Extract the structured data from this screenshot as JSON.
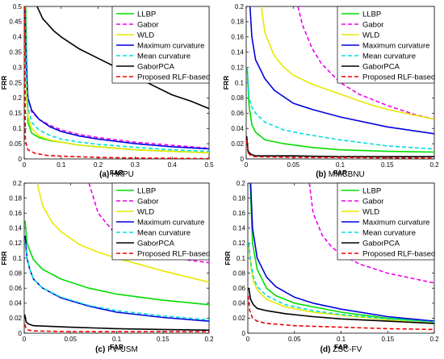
{
  "chart_data": [
    {
      "type": "line",
      "caption_letter": "(a)",
      "caption_text": "HKPU",
      "xlabel": "FAR",
      "ylabel": "FRR",
      "xlim": [
        0,
        0.5
      ],
      "ylim": [
        0,
        0.5
      ],
      "xticks": [
        "0",
        "0.1",
        "0.2",
        "0.3",
        "0.4",
        "0.5"
      ],
      "yticks": [
        "0",
        "0.05",
        "0.1",
        "0.15",
        "0.2",
        "0.25",
        "0.3",
        "0.35",
        "0.4",
        "0.45",
        "0.5"
      ],
      "legend_position": "top-right",
      "series": [
        {
          "name": "LLBP",
          "color": "#00dd00",
          "dash": "solid",
          "x": [
            0.004,
            0.01,
            0.02,
            0.04,
            0.07,
            0.1,
            0.15,
            0.2,
            0.3,
            0.4,
            0.5
          ],
          "y": [
            0.5,
            0.12,
            0.085,
            0.07,
            0.06,
            0.055,
            0.045,
            0.04,
            0.03,
            0.025,
            0.02
          ]
        },
        {
          "name": "Gabor",
          "color": "#ee00ee",
          "dash": "dashed",
          "x": [
            0.002,
            0.005,
            0.01,
            0.02,
            0.04,
            0.07,
            0.1,
            0.15,
            0.2,
            0.3,
            0.4,
            0.5
          ],
          "y": [
            0.5,
            0.35,
            0.2,
            0.155,
            0.13,
            0.11,
            0.095,
            0.08,
            0.07,
            0.055,
            0.045,
            0.035
          ]
        },
        {
          "name": "WLD",
          "color": "#e8e800",
          "dash": "solid",
          "x": [
            0.002,
            0.006,
            0.01,
            0.02,
            0.04,
            0.07,
            0.1,
            0.15,
            0.2,
            0.3,
            0.4,
            0.5
          ],
          "y": [
            0.5,
            0.2,
            0.14,
            0.1,
            0.075,
            0.062,
            0.055,
            0.045,
            0.04,
            0.03,
            0.025,
            0.02
          ]
        },
        {
          "name": "Maximum curvature",
          "color": "#0000dd",
          "dash": "solid",
          "x": [
            0.002,
            0.005,
            0.01,
            0.02,
            0.04,
            0.07,
            0.1,
            0.15,
            0.2,
            0.3,
            0.4,
            0.5
          ],
          "y": [
            0.5,
            0.32,
            0.2,
            0.16,
            0.13,
            0.105,
            0.09,
            0.075,
            0.065,
            0.05,
            0.04,
            0.033
          ]
        },
        {
          "name": "Mean curvature",
          "color": "#00dddd",
          "dash": "dashed",
          "x": [
            0.002,
            0.005,
            0.01,
            0.02,
            0.04,
            0.07,
            0.1,
            0.15,
            0.2,
            0.3,
            0.4,
            0.5
          ],
          "y": [
            0.5,
            0.3,
            0.17,
            0.12,
            0.095,
            0.077,
            0.065,
            0.055,
            0.048,
            0.038,
            0.03,
            0.025
          ]
        },
        {
          "name": "GaborPCA",
          "color": "#000000",
          "dash": "solid",
          "x": [
            0.035,
            0.05,
            0.08,
            0.1,
            0.15,
            0.2,
            0.25,
            0.3,
            0.35,
            0.4,
            0.45,
            0.5
          ],
          "y": [
            0.5,
            0.46,
            0.42,
            0.4,
            0.36,
            0.33,
            0.3,
            0.27,
            0.24,
            0.21,
            0.19,
            0.165
          ]
        },
        {
          "name": "Proposed RLF-based",
          "color": "#ee0000",
          "dash": "dashed",
          "x": [
            0.001,
            0.003,
            0.01,
            0.03,
            0.06,
            0.1,
            0.2,
            0.3,
            0.4,
            0.5
          ],
          "y": [
            0.5,
            0.06,
            0.03,
            0.018,
            0.012,
            0.009,
            0.005,
            0.003,
            0.002,
            0.001
          ]
        }
      ]
    },
    {
      "type": "line",
      "caption_letter": "(b)",
      "caption_text": "MMCBNU",
      "xlabel": "FAR",
      "ylabel": "FRR",
      "xlim": [
        0,
        0.2
      ],
      "ylim": [
        0,
        0.2
      ],
      "xticks": [
        "0",
        "0.05",
        "0.1",
        "0.15",
        "0.2"
      ],
      "yticks": [
        "0",
        "0.02",
        "0.04",
        "0.06",
        "0.08",
        "0.1",
        "0.12",
        "0.14",
        "0.16",
        "0.18",
        "0.2"
      ],
      "legend_position": "top-right",
      "series": [
        {
          "name": "LLBP",
          "color": "#00dd00",
          "dash": "solid",
          "x": [
            0.001,
            0.003,
            0.006,
            0.01,
            0.02,
            0.04,
            0.07,
            0.1,
            0.15,
            0.2
          ],
          "y": [
            0.12,
            0.07,
            0.045,
            0.035,
            0.025,
            0.02,
            0.015,
            0.012,
            0.01,
            0.009
          ]
        },
        {
          "name": "Gabor",
          "color": "#ee00ee",
          "dash": "dashed",
          "x": [
            0.055,
            0.06,
            0.07,
            0.08,
            0.1,
            0.12,
            0.15,
            0.18,
            0.2
          ],
          "y": [
            0.2,
            0.175,
            0.145,
            0.125,
            0.1,
            0.085,
            0.07,
            0.058,
            0.052
          ]
        },
        {
          "name": "WLD",
          "color": "#e8e800",
          "dash": "solid",
          "x": [
            0.016,
            0.02,
            0.03,
            0.04,
            0.05,
            0.07,
            0.1,
            0.13,
            0.15,
            0.2
          ],
          "y": [
            0.2,
            0.165,
            0.135,
            0.12,
            0.11,
            0.098,
            0.085,
            0.072,
            0.065,
            0.052
          ]
        },
        {
          "name": "Maximum curvature",
          "color": "#0000dd",
          "dash": "solid",
          "x": [
            0.004,
            0.006,
            0.01,
            0.02,
            0.03,
            0.05,
            0.07,
            0.1,
            0.15,
            0.2
          ],
          "y": [
            0.2,
            0.16,
            0.13,
            0.105,
            0.09,
            0.073,
            0.065,
            0.055,
            0.042,
            0.033
          ]
        },
        {
          "name": "Mean curvature",
          "color": "#00dddd",
          "dash": "dashed",
          "x": [
            0.001,
            0.003,
            0.006,
            0.01,
            0.02,
            0.04,
            0.06,
            0.1,
            0.15,
            0.2
          ],
          "y": [
            0.12,
            0.08,
            0.068,
            0.06,
            0.048,
            0.038,
            0.033,
            0.025,
            0.017,
            0.013
          ]
        },
        {
          "name": "GaborPCA",
          "color": "#000000",
          "dash": "solid",
          "x": [
            0.0005,
            0.002,
            0.005,
            0.01,
            0.05,
            0.1,
            0.2
          ],
          "y": [
            0.03,
            0.01,
            0.006,
            0.004,
            0.004,
            0.003,
            0.003
          ]
        },
        {
          "name": "Proposed RLF-based",
          "color": "#ee0000",
          "dash": "dashed",
          "x": [
            0.0005,
            0.002,
            0.005,
            0.01,
            0.05,
            0.1,
            0.2
          ],
          "y": [
            0.025,
            0.008,
            0.004,
            0.003,
            0.002,
            0.002,
            0.001
          ]
        }
      ]
    },
    {
      "type": "line",
      "caption_letter": "(c)",
      "caption_text": "FV-USM",
      "xlabel": "FAR",
      "ylabel": "FRR",
      "xlim": [
        0,
        0.2
      ],
      "ylim": [
        0,
        0.2
      ],
      "xticks": [
        "0",
        "0.05",
        "0.1",
        "0.15",
        "0.2"
      ],
      "yticks": [
        "0",
        "0.02",
        "0.04",
        "0.06",
        "0.08",
        "0.1",
        "0.12",
        "0.14",
        "0.16",
        "0.18",
        "0.2"
      ],
      "legend_position": "top-right",
      "series": [
        {
          "name": "LLBP",
          "color": "#00dd00",
          "dash": "solid",
          "x": [
            0.001,
            0.003,
            0.006,
            0.01,
            0.02,
            0.04,
            0.07,
            0.1,
            0.15,
            0.2
          ],
          "y": [
            0.15,
            0.12,
            0.11,
            0.098,
            0.085,
            0.072,
            0.06,
            0.052,
            0.044,
            0.038
          ]
        },
        {
          "name": "Gabor",
          "color": "#ee00ee",
          "dash": "dashed",
          "x": [
            0.07,
            0.08,
            0.1,
            0.12,
            0.15,
            0.18,
            0.2
          ],
          "y": [
            0.2,
            0.16,
            0.13,
            0.115,
            0.105,
            0.097,
            0.094
          ]
        },
        {
          "name": "WLD",
          "color": "#e8e800",
          "dash": "solid",
          "x": [
            0.014,
            0.02,
            0.03,
            0.04,
            0.06,
            0.08,
            0.1,
            0.13,
            0.15,
            0.18,
            0.2
          ],
          "y": [
            0.2,
            0.17,
            0.148,
            0.135,
            0.118,
            0.108,
            0.1,
            0.09,
            0.083,
            0.074,
            0.068
          ]
        },
        {
          "name": "Maximum curvature",
          "color": "#0000dd",
          "dash": "solid",
          "x": [
            0.001,
            0.003,
            0.006,
            0.01,
            0.02,
            0.04,
            0.07,
            0.1,
            0.15,
            0.2
          ],
          "y": [
            0.13,
            0.1,
            0.085,
            0.072,
            0.06,
            0.047,
            0.036,
            0.028,
            0.021,
            0.016
          ]
        },
        {
          "name": "Mean curvature",
          "color": "#00dddd",
          "dash": "dashed",
          "x": [
            0.001,
            0.003,
            0.006,
            0.01,
            0.02,
            0.04,
            0.07,
            0.1,
            0.15,
            0.2
          ],
          "y": [
            0.12,
            0.1,
            0.085,
            0.072,
            0.06,
            0.048,
            0.037,
            0.03,
            0.023,
            0.018
          ]
        },
        {
          "name": "GaborPCA",
          "color": "#000000",
          "dash": "solid",
          "x": [
            0.0005,
            0.002,
            0.005,
            0.01,
            0.05,
            0.1,
            0.15,
            0.2
          ],
          "y": [
            0.025,
            0.015,
            0.012,
            0.01,
            0.008,
            0.006,
            0.005,
            0.004
          ]
        },
        {
          "name": "Proposed RLF-based",
          "color": "#ee0000",
          "dash": "dashed",
          "x": [
            0.0005,
            0.002,
            0.005,
            0.01,
            0.05,
            0.1,
            0.2
          ],
          "y": [
            0.012,
            0.006,
            0.004,
            0.003,
            0.002,
            0.002,
            0.002
          ]
        }
      ]
    },
    {
      "type": "line",
      "caption_letter": "(d)",
      "caption_text": "ZSC-FV",
      "xlabel": "FAR",
      "ylabel": "FRR",
      "xlim": [
        0,
        0.2
      ],
      "ylim": [
        0,
        0.2
      ],
      "xticks": [
        "0",
        "0.05",
        "0.1",
        "0.15",
        "0.2"
      ],
      "yticks": [
        "0",
        "0.02",
        "0.04",
        "0.06",
        "0.08",
        "0.1",
        "0.12",
        "0.14",
        "0.16",
        "0.18",
        "0.2"
      ],
      "legend_position": "top-right",
      "series": [
        {
          "name": "LLBP",
          "color": "#00dd00",
          "dash": "solid",
          "x": [
            0.0025,
            0.005,
            0.01,
            0.02,
            0.03,
            0.05,
            0.07,
            0.1,
            0.15,
            0.2
          ],
          "y": [
            0.2,
            0.12,
            0.085,
            0.06,
            0.05,
            0.04,
            0.035,
            0.028,
            0.02,
            0.015
          ]
        },
        {
          "name": "Gabor",
          "color": "#ee00ee",
          "dash": "dashed",
          "x": [
            0.066,
            0.07,
            0.08,
            0.09,
            0.1,
            0.12,
            0.15,
            0.18,
            0.2
          ],
          "y": [
            0.2,
            0.16,
            0.13,
            0.115,
            0.105,
            0.092,
            0.08,
            0.072,
            0.067
          ]
        },
        {
          "name": "WLD",
          "color": "#e8e800",
          "dash": "solid",
          "x": [
            0.001,
            0.003,
            0.006,
            0.01,
            0.02,
            0.04,
            0.07,
            0.1,
            0.15,
            0.2
          ],
          "y": [
            0.12,
            0.09,
            0.07,
            0.058,
            0.045,
            0.035,
            0.028,
            0.024,
            0.018,
            0.014
          ]
        },
        {
          "name": "Maximum curvature",
          "color": "#0000dd",
          "dash": "solid",
          "x": [
            0.003,
            0.005,
            0.01,
            0.02,
            0.03,
            0.05,
            0.07,
            0.1,
            0.15,
            0.2
          ],
          "y": [
            0.2,
            0.14,
            0.1,
            0.075,
            0.062,
            0.048,
            0.04,
            0.032,
            0.022,
            0.016
          ]
        },
        {
          "name": "Mean curvature",
          "color": "#00dddd",
          "dash": "dashed",
          "x": [
            0.001,
            0.003,
            0.006,
            0.01,
            0.02,
            0.04,
            0.07,
            0.1,
            0.15,
            0.2
          ],
          "y": [
            0.12,
            0.095,
            0.075,
            0.062,
            0.05,
            0.038,
            0.03,
            0.025,
            0.019,
            0.015
          ]
        },
        {
          "name": "GaborPCA",
          "color": "#000000",
          "dash": "solid",
          "x": [
            0.001,
            0.003,
            0.006,
            0.01,
            0.02,
            0.04,
            0.07,
            0.1,
            0.15,
            0.2
          ],
          "y": [
            0.06,
            0.045,
            0.038,
            0.033,
            0.03,
            0.026,
            0.022,
            0.019,
            0.016,
            0.013
          ]
        },
        {
          "name": "Proposed RLF-based",
          "color": "#ee0000",
          "dash": "dashed",
          "x": [
            0.0005,
            0.002,
            0.005,
            0.01,
            0.02,
            0.05,
            0.1,
            0.15,
            0.2
          ],
          "y": [
            0.05,
            0.03,
            0.02,
            0.016,
            0.013,
            0.01,
            0.008,
            0.006,
            0.005
          ]
        }
      ]
    }
  ]
}
